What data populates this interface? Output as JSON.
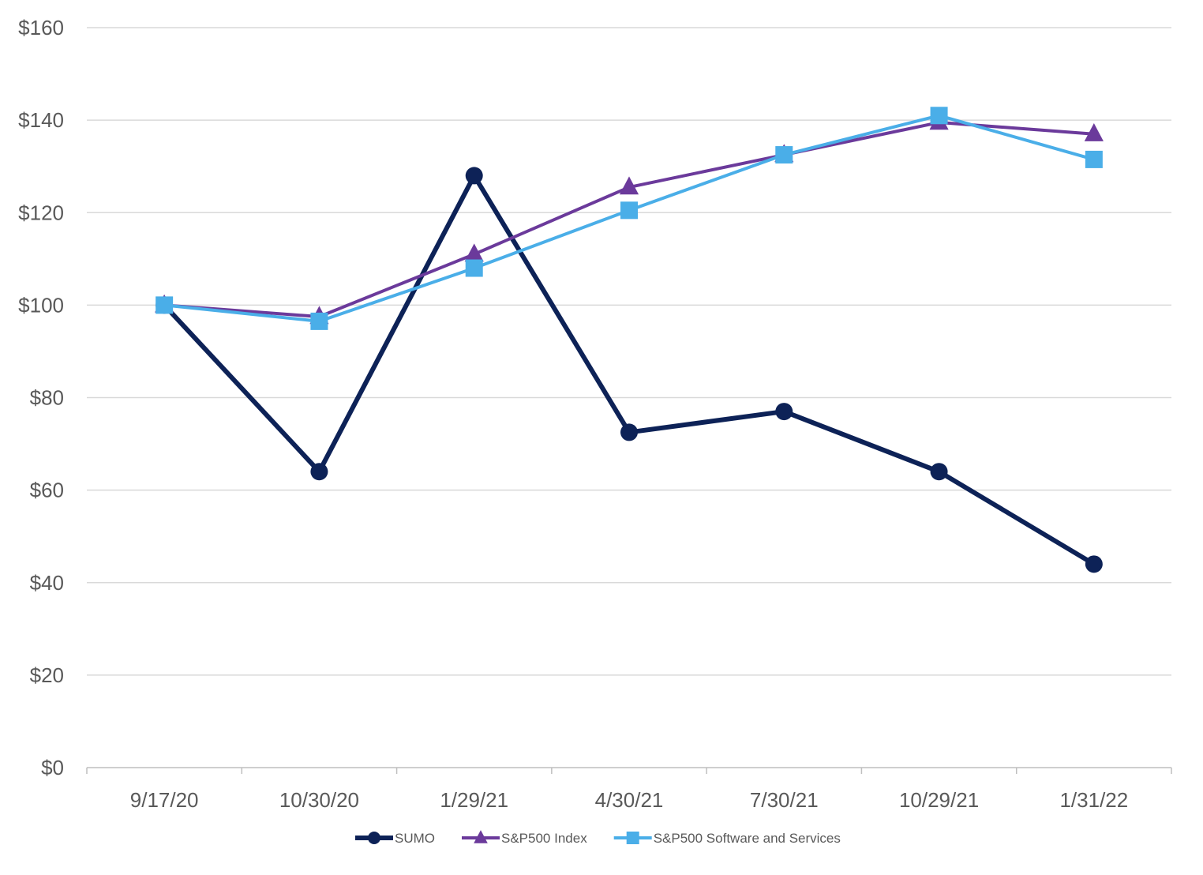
{
  "chart_data": {
    "type": "line",
    "title": "",
    "xlabel": "",
    "ylabel": "",
    "categories": [
      "9/17/20",
      "10/30/20",
      "1/29/21",
      "4/30/21",
      "7/30/21",
      "10/29/21",
      "1/31/22"
    ],
    "ylim": [
      0,
      160
    ],
    "yticks": [
      0,
      20,
      40,
      60,
      80,
      100,
      120,
      140,
      160
    ],
    "ytick_labels": [
      "$0",
      "$20",
      "$40",
      "$60",
      "$80",
      "$100",
      "$120",
      "$140",
      "$160"
    ],
    "grid": true,
    "legend_position": "bottom",
    "series": [
      {
        "name": "SUMO",
        "color": "#0d2257",
        "marker": "circle",
        "values": [
          100,
          64,
          128,
          72.5,
          77,
          64,
          44
        ]
      },
      {
        "name": "S&P500 Index",
        "color": "#6b3a9b",
        "marker": "triangle",
        "values": [
          100,
          97.5,
          111,
          125.5,
          132.5,
          139.5,
          137
        ]
      },
      {
        "name": "S&P500 Software and Services",
        "color": "#4aaee8",
        "marker": "square",
        "values": [
          100,
          96.5,
          108,
          120.5,
          132.5,
          141,
          131.5
        ]
      }
    ]
  }
}
